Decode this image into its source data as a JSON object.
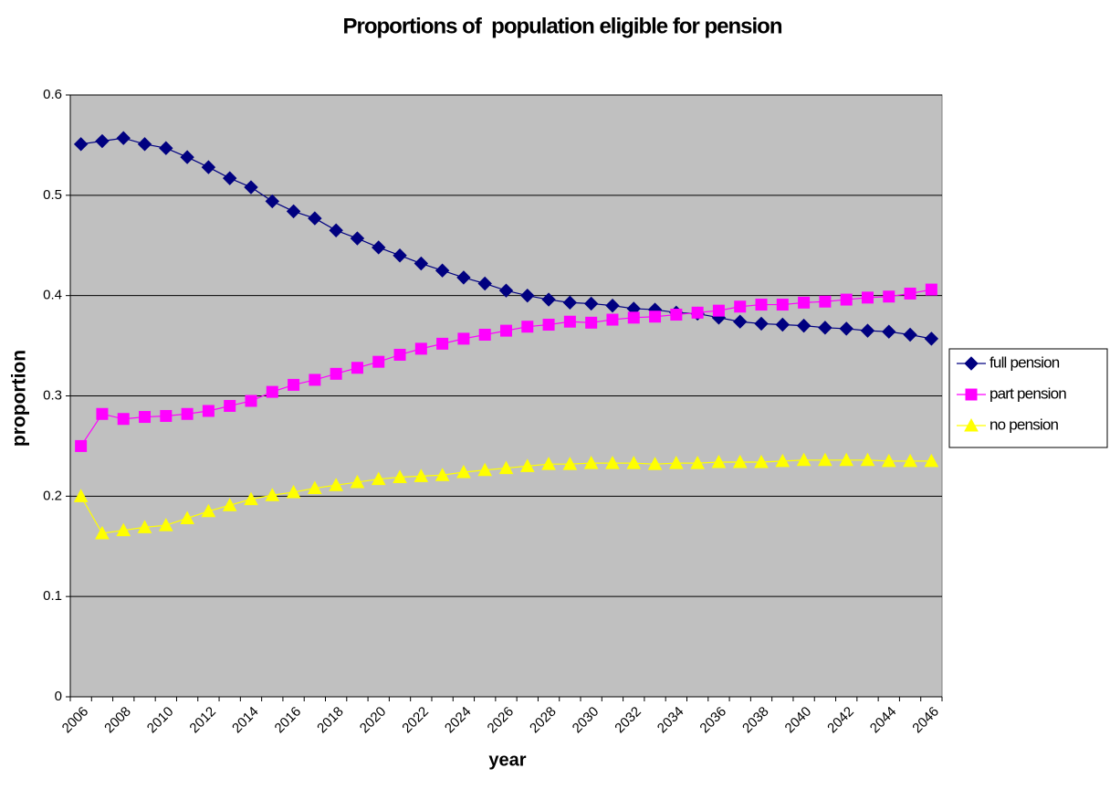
{
  "chart_data": {
    "type": "line",
    "title": "Proportions of  population eligible for pension",
    "x_label": "year",
    "y_label": "proportion",
    "categories": [
      "2006",
      null,
      "2008",
      null,
      "2010",
      null,
      "2012",
      null,
      "2014",
      null,
      "2016",
      null,
      "2018",
      null,
      "2020",
      null,
      "2022",
      null,
      "2024",
      null,
      "2026",
      null,
      "2028",
      null,
      "2030",
      null,
      "2032",
      null,
      "2034",
      null,
      "2036",
      null,
      "2038",
      null,
      "2040",
      null,
      "2042",
      null,
      "2044",
      null,
      "2046"
    ],
    "series": [
      {
        "name": "full pension",
        "color": "#000080",
        "marker": "diamond",
        "values": [
          0.551,
          0.554,
          0.557,
          0.551,
          0.547,
          0.538,
          0.528,
          0.517,
          0.508,
          0.494,
          0.484,
          0.477,
          0.465,
          0.457,
          0.448,
          0.44,
          0.432,
          0.425,
          0.418,
          0.412,
          0.405,
          0.4,
          0.396,
          0.393,
          0.392,
          0.39,
          0.387,
          0.386,
          0.383,
          0.382,
          0.378,
          0.374,
          0.372,
          0.371,
          0.37,
          0.368,
          0.367,
          0.365,
          0.364,
          0.361,
          0.357
        ]
      },
      {
        "name": "part pension",
        "color": "#ff00ff",
        "marker": "square",
        "values": [
          0.25,
          0.282,
          0.277,
          0.279,
          0.28,
          0.282,
          0.285,
          0.29,
          0.295,
          0.304,
          0.311,
          0.316,
          0.322,
          0.328,
          0.334,
          0.341,
          0.347,
          0.352,
          0.357,
          0.361,
          0.365,
          0.369,
          0.371,
          0.374,
          0.373,
          0.376,
          0.378,
          0.379,
          0.381,
          0.383,
          0.385,
          0.389,
          0.391,
          0.391,
          0.393,
          0.394,
          0.396,
          0.398,
          0.399,
          0.402,
          0.406
        ]
      },
      {
        "name": "no pension",
        "color": "#ffff00",
        "marker": "triangle",
        "values": [
          0.2,
          0.163,
          0.166,
          0.169,
          0.171,
          0.178,
          0.185,
          0.191,
          0.197,
          0.201,
          0.204,
          0.208,
          0.211,
          0.214,
          0.217,
          0.219,
          0.22,
          0.221,
          0.224,
          0.226,
          0.228,
          0.23,
          0.232,
          0.232,
          0.233,
          0.233,
          0.233,
          0.232,
          0.233,
          0.233,
          0.234,
          0.234,
          0.234,
          0.235,
          0.236,
          0.236,
          0.236,
          0.236,
          0.235,
          0.235,
          0.235
        ]
      }
    ],
    "ylim": [
      0,
      0.6
    ],
    "yticks": [
      0,
      0.1,
      0.2,
      0.3,
      0.4,
      0.5,
      0.6
    ],
    "grid": true,
    "plot_background": "#c0c0c0",
    "legend": "right"
  }
}
